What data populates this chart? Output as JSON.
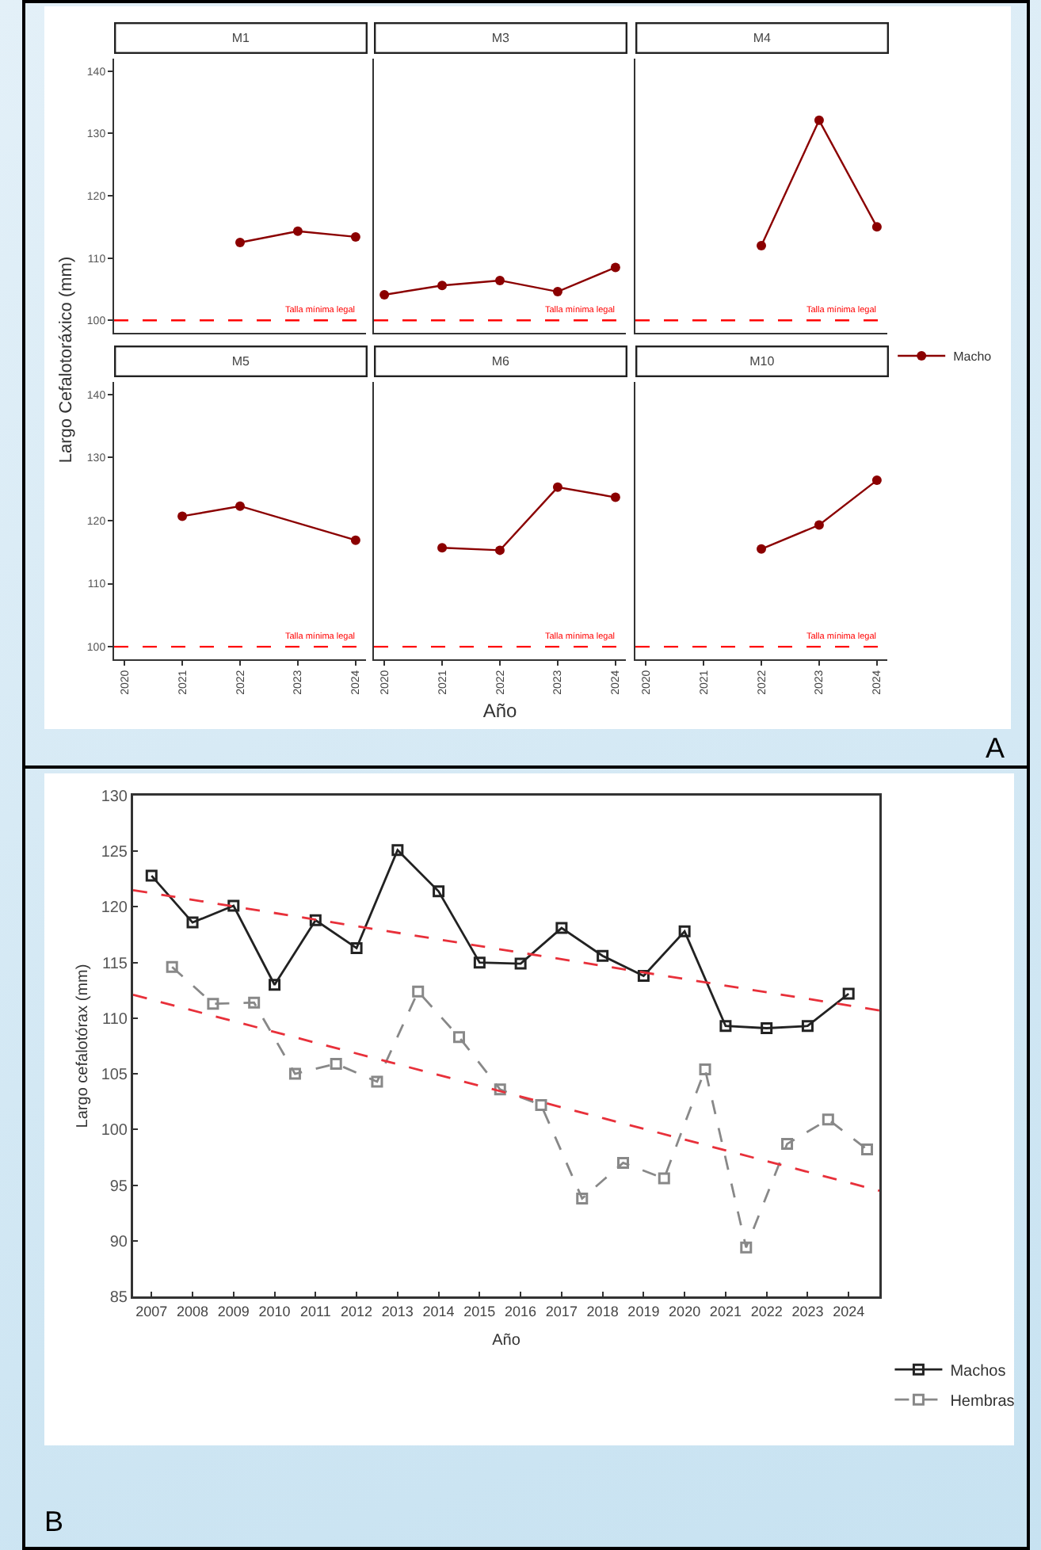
{
  "chart_data": [
    {
      "type": "line",
      "title": "M1",
      "ylabel": "Largo Cefalotoráxico (mm)",
      "x": [
        2022,
        2023,
        2024
      ],
      "series": [
        {
          "color": "#8b0000",
          "values": [
            112.5,
            114.3,
            113.4
          ]
        }
      ],
      "xlim": [
        2019.82,
        2024.18
      ],
      "xticks": [
        2020,
        2021,
        2022,
        2023,
        2024
      ],
      "ylim": [
        98,
        142
      ],
      "yticks": [
        100,
        110,
        120,
        130,
        140
      ],
      "tick_labels": "y",
      "marker": "circle",
      "line_style": "solid",
      "grid": false,
      "ref_lines": [
        {
          "axis": "y",
          "value": 100,
          "label": "Talla mínima legal",
          "color": "#ff0000",
          "line_style": "dashed"
        }
      ]
    },
    {
      "type": "line",
      "title": "M3",
      "x": [
        2020,
        2021,
        2022,
        2023,
        2024
      ],
      "series": [
        {
          "color": "#8b0000",
          "values": [
            104.1,
            105.6,
            106.4,
            104.6,
            108.5
          ]
        }
      ],
      "xlim": [
        2019.82,
        2024.18
      ],
      "xticks": [
        2020,
        2021,
        2022,
        2023,
        2024
      ],
      "ylim": [
        98,
        142
      ],
      "yticks": [
        100,
        110,
        120,
        130,
        140
      ],
      "tick_labels": false,
      "marker": "circle",
      "line_style": "solid",
      "grid": false,
      "ref_lines": [
        {
          "axis": "y",
          "value": 100,
          "label": "Talla mínima legal",
          "color": "#ff0000",
          "line_style": "dashed"
        }
      ]
    },
    {
      "type": "line",
      "title": "M4",
      "x": [
        2022,
        2023,
        2024
      ],
      "series": [
        {
          "name": "Macho",
          "color": "#8b0000",
          "values": [
            112,
            132.1,
            115
          ]
        }
      ],
      "xlim": [
        2019.82,
        2024.18
      ],
      "xticks": [
        2020,
        2021,
        2022,
        2023,
        2024
      ],
      "ylim": [
        98,
        142
      ],
      "yticks": [
        100,
        110,
        120,
        130,
        140
      ],
      "tick_labels": false,
      "marker": "circle",
      "line_style": "solid",
      "grid": false,
      "legend": "bottom right",
      "ref_lines": [
        {
          "axis": "y",
          "value": 100,
          "label": "Talla mínima legal",
          "color": "#ff0000",
          "line_style": "dashed"
        }
      ]
    },
    {
      "type": "line",
      "title": "M5",
      "x": [
        2021,
        2022,
        2024
      ],
      "series": [
        {
          "color": "#8b0000",
          "values": [
            120.7,
            122.3,
            116.9
          ]
        }
      ],
      "xlim": [
        2019.82,
        2024.18
      ],
      "xticks": [
        2020,
        2021,
        2022,
        2023,
        2024
      ],
      "ylim": [
        98,
        142
      ],
      "yticks": [
        100,
        110,
        120,
        130,
        140
      ],
      "marker": "circle",
      "line_style": "solid",
      "grid": false,
      "ref_lines": [
        {
          "axis": "y",
          "value": 100,
          "label": "Talla mínima legal",
          "color": "#ff0000",
          "line_style": "dashed"
        }
      ]
    },
    {
      "type": "line",
      "title": "M6",
      "xlabel": "Año",
      "x": [
        2021,
        2022,
        2023,
        2024
      ],
      "series": [
        {
          "color": "#8b0000",
          "values": [
            115.7,
            115.3,
            125.3,
            123.7
          ]
        }
      ],
      "xlim": [
        2019.82,
        2024.18
      ],
      "xticks": [
        2020,
        2021,
        2022,
        2023,
        2024
      ],
      "ylim": [
        98,
        142
      ],
      "yticks": [
        100,
        110,
        120,
        130,
        140
      ],
      "tick_labels": "x",
      "marker": "circle",
      "line_style": "solid",
      "grid": false,
      "ref_lines": [
        {
          "axis": "y",
          "value": 100,
          "label": "Talla mínima legal",
          "color": "#ff0000",
          "line_style": "dashed"
        }
      ]
    },
    {
      "type": "line",
      "title": "M10",
      "annotations": [
        "A"
      ],
      "x": [
        2022,
        2023,
        2024
      ],
      "series": [
        {
          "color": "#8b0000",
          "values": [
            115.5,
            119.3,
            126.4
          ]
        }
      ],
      "xlim": [
        2019.82,
        2024.18
      ],
      "xticks": [
        2020,
        2021,
        2022,
        2023,
        2024
      ],
      "ylim": [
        98,
        142
      ],
      "yticks": [
        100,
        110,
        120,
        130,
        140
      ],
      "tick_labels": "x",
      "marker": "circle",
      "line_style": "solid",
      "grid": false,
      "ref_lines": [
        {
          "axis": "y",
          "value": 100,
          "label": "Talla mínima legal",
          "color": "#ff0000",
          "line_style": "dashed"
        }
      ]
    },
    {
      "type": "line",
      "xlabel": "Año",
      "ylabel": "Largo cefalotórax (mm)",
      "annotations": [
        "B"
      ],
      "x": [
        2007,
        2008,
        2009,
        2010,
        2011,
        2012,
        2013,
        2014,
        2015,
        2016,
        2017,
        2018,
        2019,
        2020,
        2021,
        2022,
        2023,
        2024
      ],
      "series": [
        {
          "name": "Machos",
          "color": "#222222",
          "line_style": "solid",
          "values": [
            122.8,
            118.6,
            120.1,
            113.0,
            118.8,
            116.3,
            125.1,
            121.4,
            115.0,
            114.9,
            118.1,
            115.6,
            113.8,
            117.8,
            109.3,
            109.1,
            109.3,
            112.2
          ]
        },
        {
          "name": "Hembras",
          "color": "#888888",
          "line_style": "dashed",
          "x": [
            2007.5,
            2008.5,
            2009.5,
            2010.5,
            2011.5,
            2012.5,
            2013.5,
            2014.5,
            2015.5,
            2016.5,
            2017.5,
            2018.5,
            2019.5,
            2020.5,
            2021.5,
            2022.5,
            2023.5,
            2024.45
          ],
          "values": [
            114.6,
            111.3,
            111.4,
            105.0,
            105.9,
            104.3,
            112.4,
            108.3,
            103.6,
            102.2,
            93.8,
            97.0,
            95.6,
            105.4,
            89.4,
            98.7,
            100.9,
            98.2
          ]
        },
        {
          "type": "line",
          "color": "#e8303a",
          "line_style": "dashed",
          "marker": "none",
          "x": [
            2006.55,
            2024.75
          ],
          "values": [
            121.5,
            110.7
          ]
        },
        {
          "type": "line",
          "color": "#e8303a",
          "line_style": "dashed",
          "marker": "none",
          "x": [
            2006.55,
            2024.75
          ],
          "values": [
            112.1,
            94.5
          ]
        }
      ],
      "xlim": [
        2006.55,
        2024.75
      ],
      "xticks": [
        2007,
        2008,
        2009,
        2010,
        2011,
        2012,
        2013,
        2014,
        2015,
        2016,
        2017,
        2018,
        2019,
        2020,
        2021,
        2022,
        2023,
        2024
      ],
      "ylim": [
        85,
        130
      ],
      "yticks": [
        85,
        90,
        95,
        100,
        105,
        110,
        115,
        120,
        125,
        130
      ],
      "marker": "square",
      "grid": false,
      "legend": "bottom right"
    }
  ]
}
